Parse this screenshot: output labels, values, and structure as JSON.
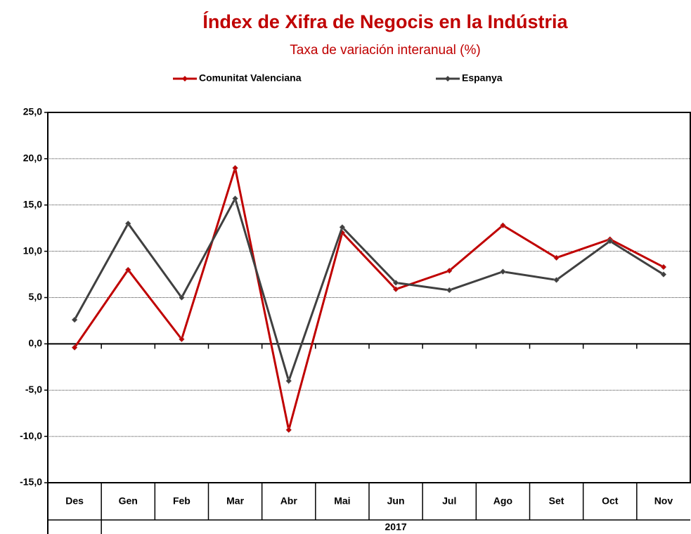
{
  "chart_data": {
    "type": "line",
    "title": "Índex de Xifra de Negocis en la Indústria",
    "subtitle": "Taxa de variación interanual (%)",
    "categories": [
      "Des",
      "Gen",
      "Feb",
      "Mar",
      "Abr",
      "Mai",
      "Jun",
      "Jul",
      "Ago",
      "Set",
      "Oct",
      "Nov"
    ],
    "category_group": "2017",
    "series": [
      {
        "name": "Comunitat Valenciana",
        "color": "#c00000",
        "values": [
          -0.4,
          8.0,
          0.5,
          19.0,
          -9.3,
          12.0,
          5.9,
          7.9,
          12.8,
          9.3,
          11.3,
          8.3
        ]
      },
      {
        "name": "Espanya",
        "color": "#404040",
        "values": [
          2.6,
          13.0,
          5.0,
          15.7,
          -4.0,
          12.6,
          6.6,
          5.8,
          7.8,
          6.9,
          11.1,
          7.5
        ]
      }
    ],
    "ylim": [
      -15,
      25
    ],
    "yticks": [
      {
        "value": -15,
        "label": "-15,0"
      },
      {
        "value": -10,
        "label": "-10,0"
      },
      {
        "value": -5,
        "label": "-5,0"
      },
      {
        "value": 0,
        "label": "0,0"
      },
      {
        "value": 5,
        "label": "5,0"
      },
      {
        "value": 10,
        "label": "10,0"
      },
      {
        "value": 15,
        "label": "15,0"
      },
      {
        "value": 20,
        "label": "20,0"
      },
      {
        "value": 25,
        "label": "25,0"
      }
    ],
    "grid": true,
    "legend": "top"
  }
}
